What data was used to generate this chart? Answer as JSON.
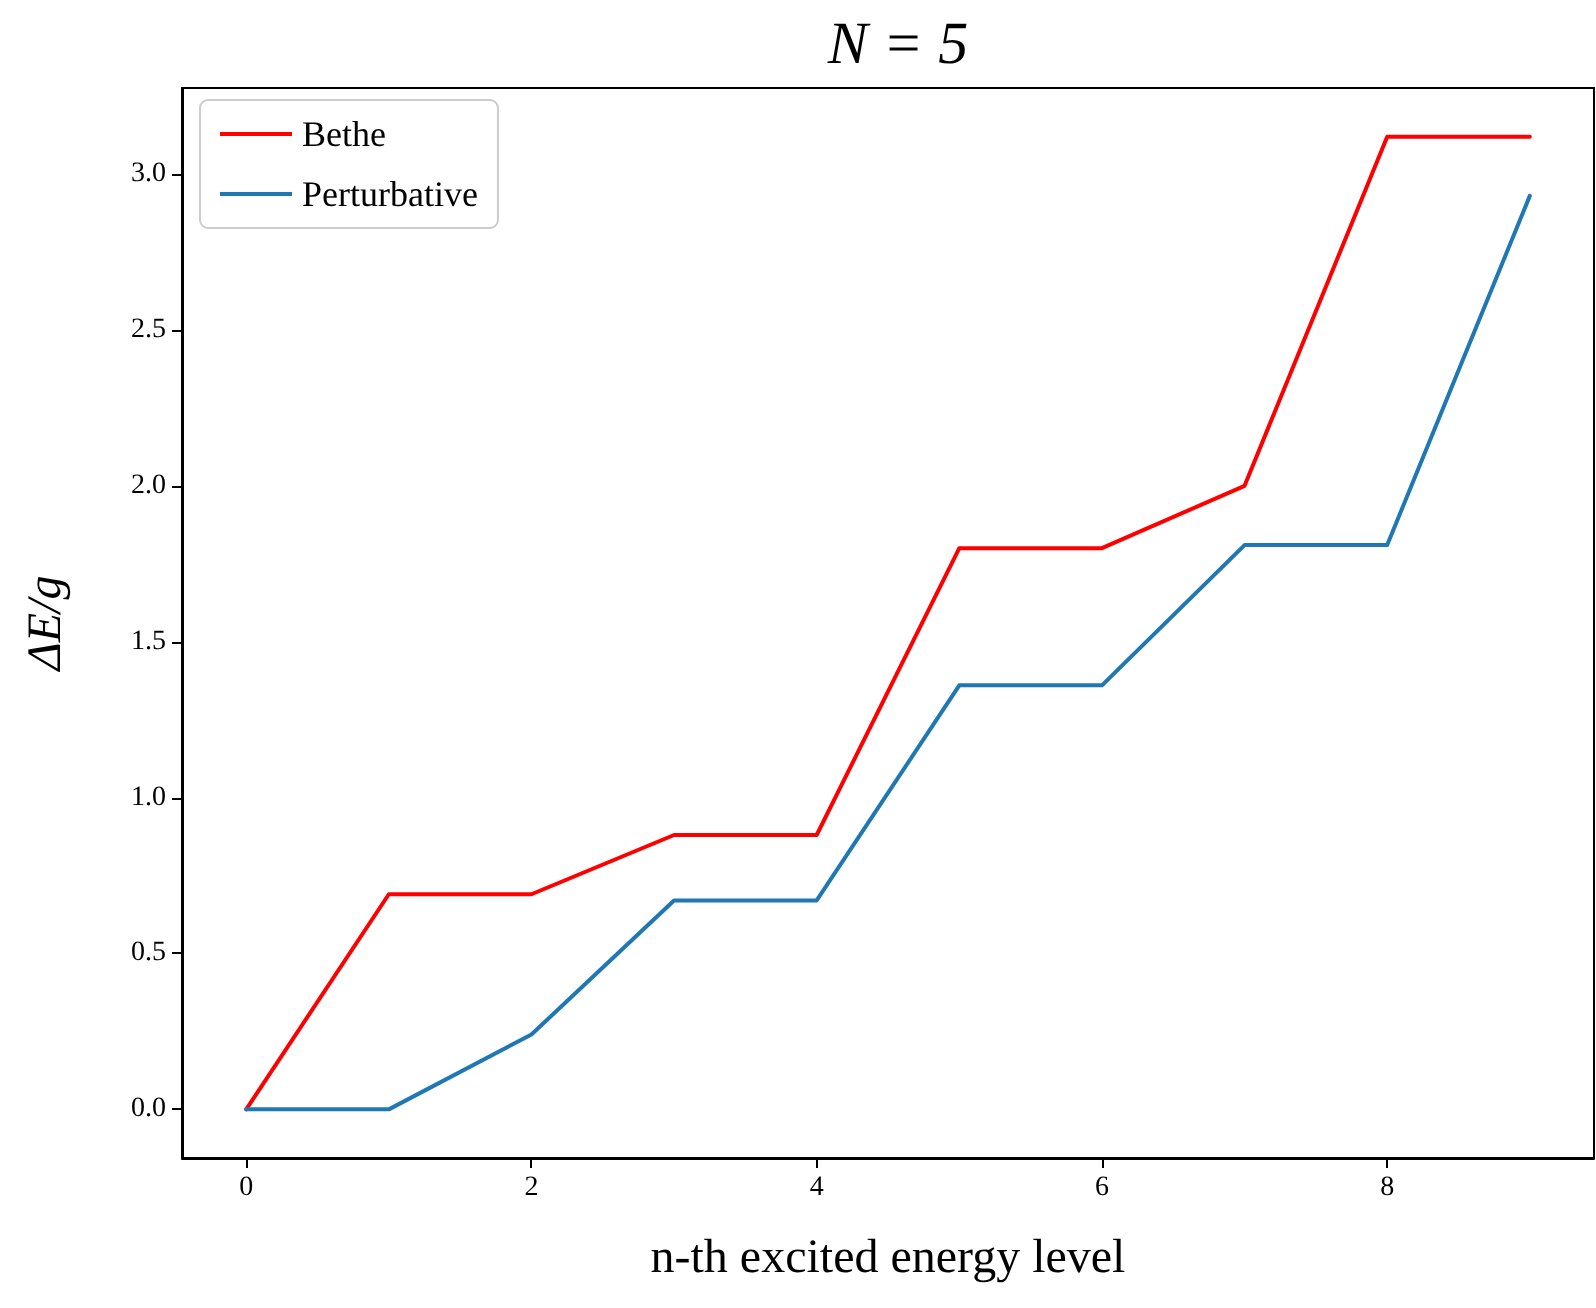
{
  "chart_data": {
    "type": "line",
    "title": "N = 5",
    "xlabel": "n-th excited energy level",
    "ylabel": "ΔE/g",
    "x": [
      0,
      1,
      2,
      3,
      4,
      5,
      6,
      7,
      8,
      9
    ],
    "series": [
      {
        "name": "Bethe",
        "color": "#ff0000",
        "values": [
          0,
          0.69,
          0.69,
          0.88,
          0.88,
          1.8,
          1.8,
          2.0,
          3.12,
          3.12
        ]
      },
      {
        "name": "Perturbative",
        "color": "#1f77b4",
        "values": [
          0,
          0,
          0.24,
          0.67,
          0.67,
          1.36,
          1.36,
          1.81,
          1.81,
          2.93
        ]
      }
    ],
    "xlim": [
      -0.45,
      9.45
    ],
    "xticks": [
      0,
      2,
      4,
      6,
      8
    ],
    "ylim": [
      -0.156,
      3.276
    ],
    "yticks": [
      {
        "value": 0,
        "label": "0.0"
      },
      {
        "value": 0.5,
        "label": "0.5"
      },
      {
        "value": 1,
        "label": "1.0"
      },
      {
        "value": 1.5,
        "label": "1.5"
      },
      {
        "value": 2,
        "label": "2.0"
      },
      {
        "value": 2.5,
        "label": "2.5"
      },
      {
        "value": 3,
        "label": "3.0"
      }
    ],
    "grid": false,
    "legend": "top left",
    "marker": "none",
    "line_style": "solid"
  }
}
